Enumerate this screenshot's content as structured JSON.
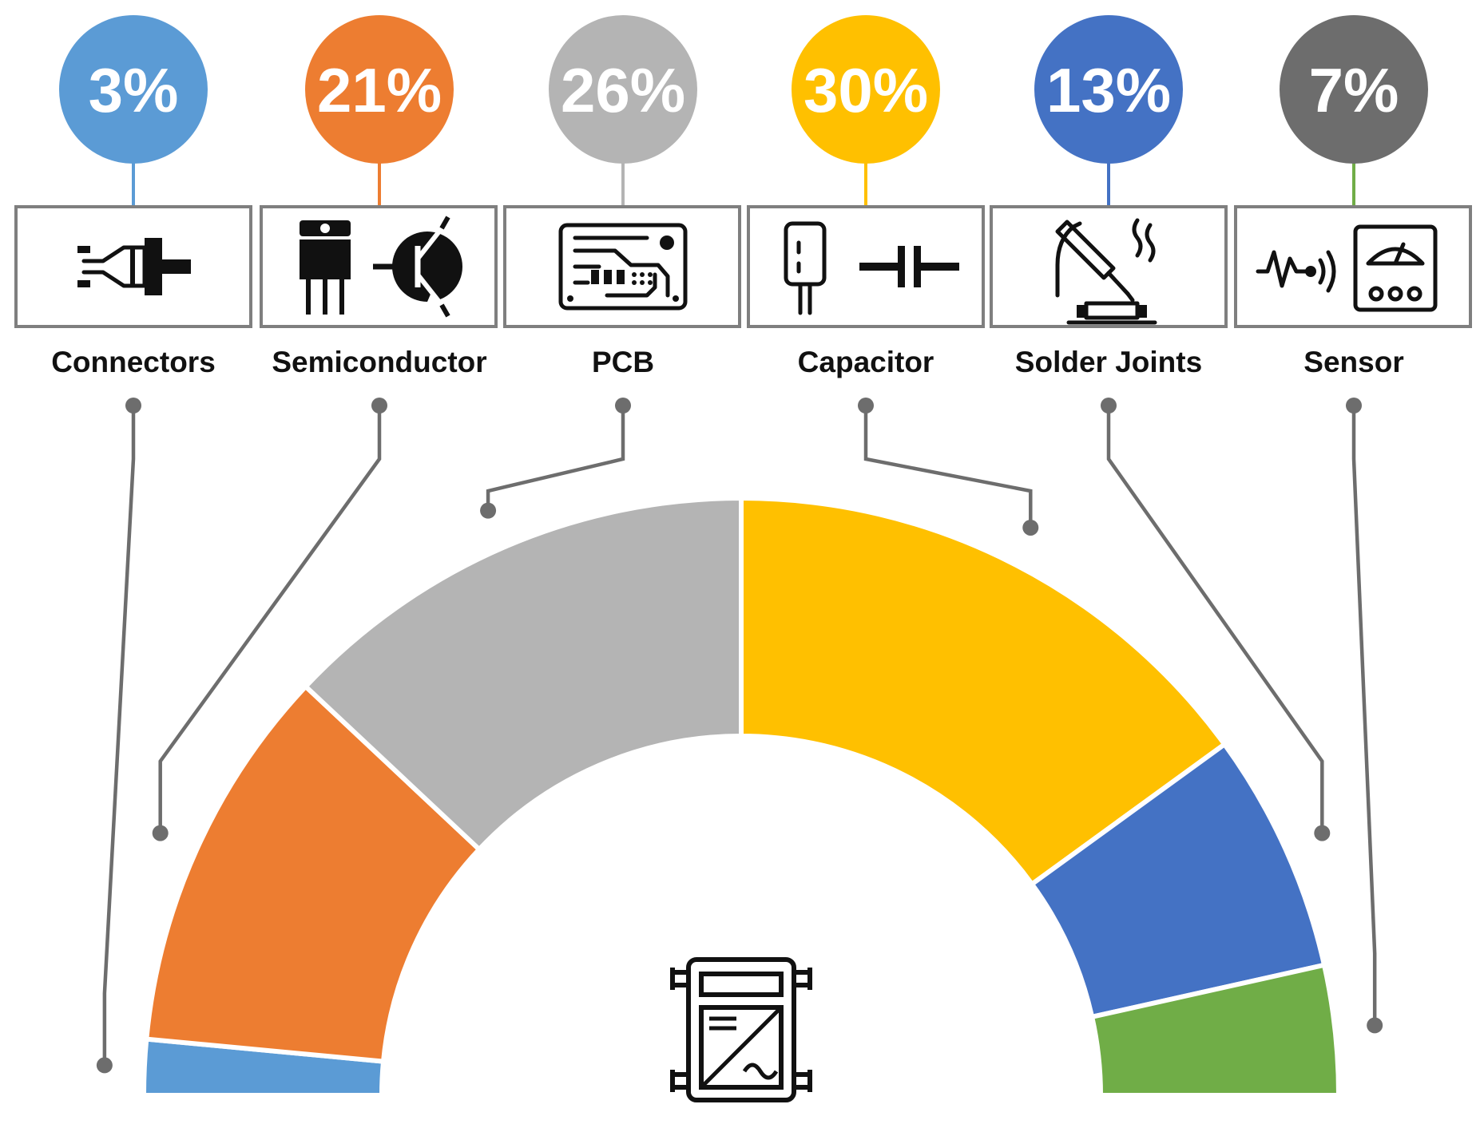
{
  "chart_data": {
    "type": "pie",
    "variant": "semi-donut",
    "title": "",
    "categories": [
      "Connectors",
      "Semiconductor",
      "PCB",
      "Capacitor",
      "Solder Joints",
      "Sensor"
    ],
    "values": [
      3,
      21,
      26,
      30,
      13,
      7
    ],
    "value_labels": [
      "3%",
      "21%",
      "26%",
      "30%",
      "13%",
      "7%"
    ],
    "colors": [
      "#5b9bd5",
      "#ed7d31",
      "#b4b4b4",
      "#ffc000",
      "#4472c4",
      "#70ad47"
    ],
    "badge_colors": [
      "#5b9bd5",
      "#ed7d31",
      "#b4b4b4",
      "#ffc000",
      "#4472c4",
      "#6d6d6d"
    ],
    "icons": [
      "plug-icon",
      "transistor-icon",
      "circuit-board-icon",
      "capacitor-icon",
      "soldering-iron-icon",
      "sensor-gauge-icon"
    ],
    "center_icon": "power-module-icon",
    "legend": "top"
  }
}
